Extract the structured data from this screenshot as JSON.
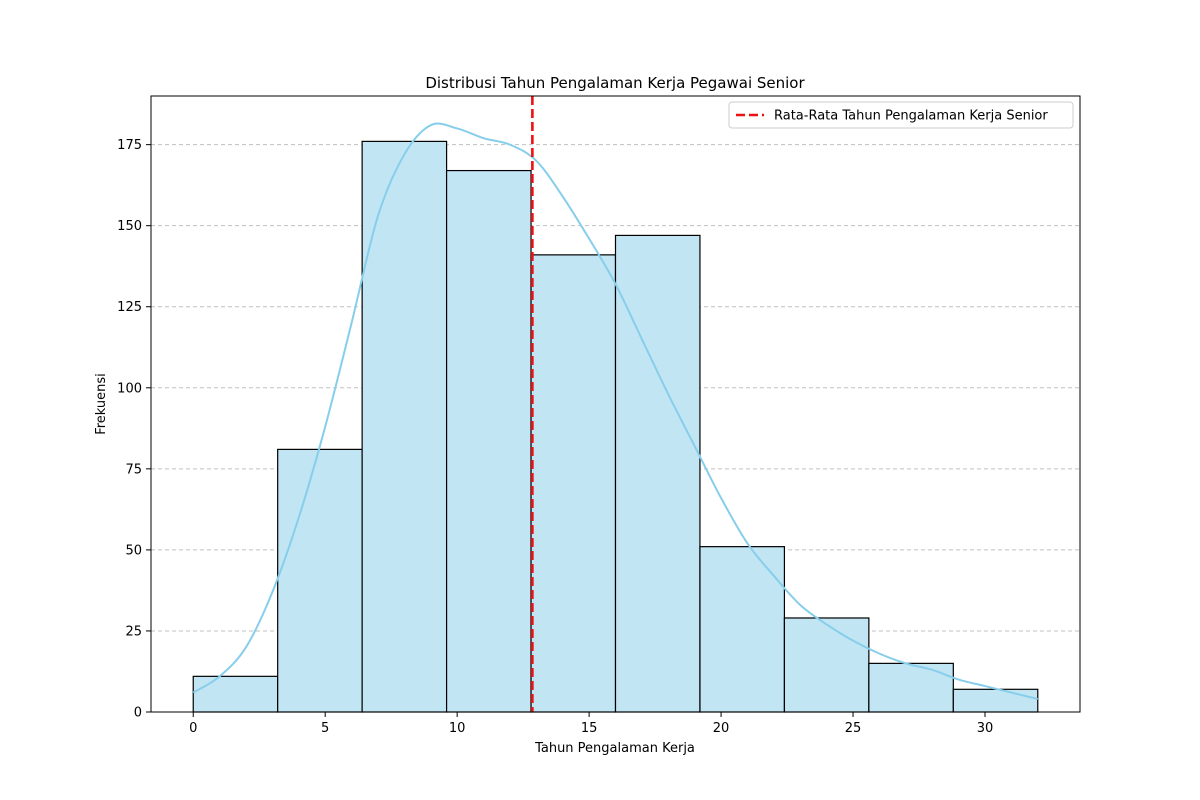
{
  "chart_data": {
    "type": "bar",
    "title": "Distribusi Tahun Pengalaman Kerja Pegawai Senior",
    "xlabel": "Tahun Pengalaman Kerja",
    "ylabel": "Frekuensi",
    "xlim": [
      -1.6,
      33.6
    ],
    "ylim": [
      0,
      190
    ],
    "x_ticks": [
      0,
      5,
      10,
      15,
      20,
      25,
      30
    ],
    "y_ticks": [
      0,
      25,
      50,
      75,
      100,
      125,
      150,
      175
    ],
    "grid": "y-dashed",
    "bins": [
      {
        "start": 0.0,
        "end": 3.2,
        "count": 11
      },
      {
        "start": 3.2,
        "end": 6.4,
        "count": 81
      },
      {
        "start": 6.4,
        "end": 9.6,
        "count": 176
      },
      {
        "start": 9.6,
        "end": 12.8,
        "count": 167
      },
      {
        "start": 12.8,
        "end": 16.0,
        "count": 141
      },
      {
        "start": 16.0,
        "end": 19.2,
        "count": 147
      },
      {
        "start": 19.2,
        "end": 22.4,
        "count": 51
      },
      {
        "start": 22.4,
        "end": 25.6,
        "count": 29
      },
      {
        "start": 25.6,
        "end": 28.8,
        "count": 15
      },
      {
        "start": 28.8,
        "end": 32.0,
        "count": 7
      }
    ],
    "kde": {
      "x": [
        0,
        1,
        2,
        3,
        4,
        5,
        6,
        7,
        8,
        9,
        10,
        11,
        12,
        13,
        14,
        15,
        16,
        17,
        18,
        19,
        20,
        21,
        22,
        23,
        24,
        25,
        26,
        27,
        28,
        29,
        30,
        31,
        32
      ],
      "y": [
        6,
        11,
        20,
        37,
        60,
        88,
        120,
        153,
        172,
        181,
        180,
        177,
        175,
        170,
        159,
        146,
        132,
        115,
        98,
        82,
        66,
        52,
        42,
        33,
        27,
        22,
        18,
        15,
        13,
        10,
        8,
        6,
        4
      ]
    },
    "mean_line": {
      "x": 12.85,
      "label": "Rata-Rata Tahun Pengalaman Kerja Senior"
    },
    "legend_position": "top-right",
    "colors": {
      "bar_fill": "#c2e5f4",
      "bar_edge": "#000000",
      "kde_line": "#87ceeb",
      "mean_line": "#ee1111",
      "grid": "#c0c0c0"
    }
  }
}
